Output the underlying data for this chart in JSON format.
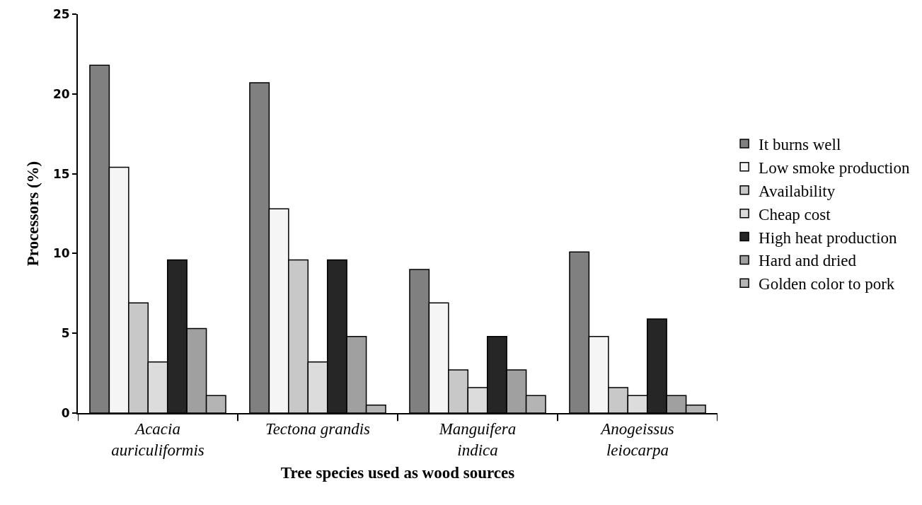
{
  "chart_data": {
    "type": "bar",
    "xlabel": "Tree species used as wood sources",
    "ylabel": "Processors (%)",
    "categories": [
      "Acacia auriculiformis",
      "Tectona grandis",
      "Manguifera indica",
      "Anogeissus leiocarpa"
    ],
    "series": [
      {
        "name": "It burns well",
        "color": "#808080",
        "values": [
          21.8,
          20.7,
          9.0,
          10.1
        ]
      },
      {
        "name": "Low smoke production",
        "color": "#f5f5f5",
        "values": [
          15.4,
          12.8,
          6.9,
          4.8
        ]
      },
      {
        "name": "Availability",
        "color": "#c8c8c8",
        "values": [
          6.9,
          9.6,
          2.7,
          1.6
        ]
      },
      {
        "name": "Cheap cost",
        "color": "#dcdcdc",
        "values": [
          3.2,
          3.2,
          1.6,
          1.1
        ]
      },
      {
        "name": "High heat production",
        "color": "#262626",
        "values": [
          9.6,
          9.6,
          4.8,
          5.9
        ]
      },
      {
        "name": "Hard and dried",
        "color": "#a0a0a0",
        "values": [
          5.3,
          4.8,
          2.7,
          1.1
        ]
      },
      {
        "name": "Golden color to pork",
        "color": "#b4b4b4",
        "values": [
          1.1,
          0.5,
          1.1,
          0.5
        ]
      }
    ],
    "ylim": [
      0,
      25
    ],
    "yticks": [
      0,
      5,
      10,
      15,
      20,
      25
    ],
    "grid": false,
    "legend": "right"
  }
}
